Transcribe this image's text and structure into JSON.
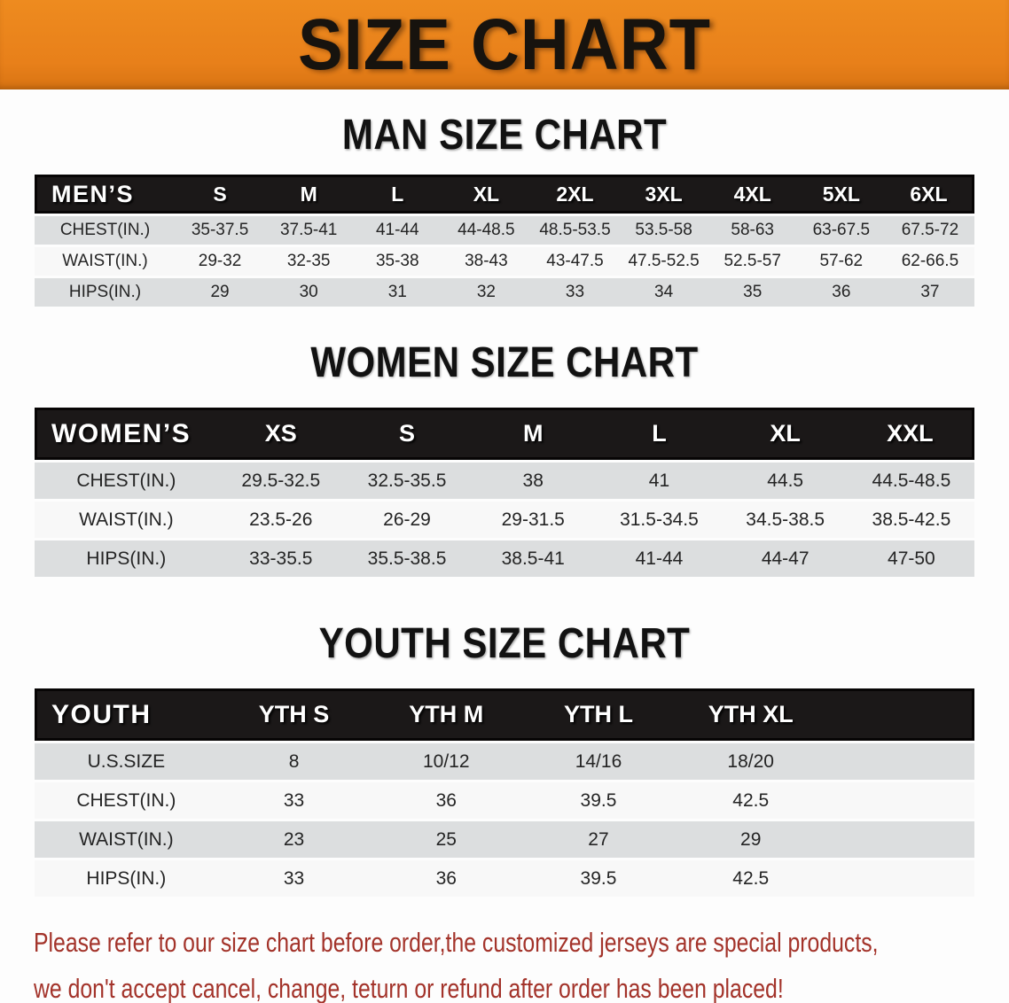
{
  "banner": {
    "title": "SIZE CHART"
  },
  "theme": {
    "banner_bg": "#E8801A",
    "banner_text": "#17130E",
    "header_bar_bg": "#1B1818",
    "header_bar_text": "#FFFFFF",
    "row_shade": "#DCDEDF",
    "row_plain": "#F8F8F8",
    "disclaimer_color": "#A3332A"
  },
  "sections": {
    "mens": {
      "title": "MAN SIZE CHART",
      "table": {
        "label": "MEN’S",
        "header": [
          "S",
          "M",
          "L",
          "XL",
          "2XL",
          "3XL",
          "4XL",
          "5XL",
          "6XL"
        ],
        "rows": [
          {
            "label": "CHEST(IN.)",
            "values": [
              "35-37.5",
              "37.5-41",
              "41-44",
              "44-48.5",
              "48.5-53.5",
              "53.5-58",
              "58-63",
              "63-67.5",
              "67.5-72"
            ]
          },
          {
            "label": "WAIST(IN.)",
            "values": [
              "29-32",
              "32-35",
              "35-38",
              "38-43",
              "43-47.5",
              "47.5-52.5",
              "52.5-57",
              "57-62",
              "62-66.5"
            ]
          },
          {
            "label": "HIPS(IN.)",
            "values": [
              "29",
              "30",
              "31",
              "32",
              "33",
              "34",
              "35",
              "36",
              "37"
            ]
          }
        ]
      }
    },
    "womens": {
      "title": "WOMEN SIZE CHART",
      "table": {
        "label": "WOMEN’S",
        "header": [
          "XS",
          "S",
          "M",
          "L",
          "XL",
          "XXL"
        ],
        "rows": [
          {
            "label": "CHEST(IN.)",
            "values": [
              "29.5-32.5",
              "32.5-35.5",
              "38",
              "41",
              "44.5",
              "44.5-48.5"
            ]
          },
          {
            "label": "WAIST(IN.)",
            "values": [
              "23.5-26",
              "26-29",
              "29-31.5",
              "31.5-34.5",
              "34.5-38.5",
              "38.5-42.5"
            ]
          },
          {
            "label": "HIPS(IN.)",
            "values": [
              "33-35.5",
              "35.5-38.5",
              "38.5-41",
              "41-44",
              "44-47",
              "47-50"
            ]
          }
        ]
      }
    },
    "youth": {
      "title": "YOUTH SIZE CHART",
      "table": {
        "label": "YOUTH",
        "header": [
          "YTH S",
          "YTH M",
          "YTH L",
          "YTH XL"
        ],
        "rows": [
          {
            "label": "U.S.SIZE",
            "values": [
              "8",
              "10/12",
              "14/16",
              "18/20"
            ]
          },
          {
            "label": "CHEST(IN.)",
            "values": [
              "33",
              "36",
              "39.5",
              "42.5"
            ]
          },
          {
            "label": "WAIST(IN.)",
            "values": [
              "23",
              "25",
              "27",
              "29"
            ]
          },
          {
            "label": "HIPS(IN.)",
            "values": [
              "33",
              "36",
              "39.5",
              "42.5"
            ]
          }
        ]
      }
    }
  },
  "disclaimer": {
    "line1": "Please refer to our size chart before order,the customized jerseys are special products,",
    "line2": "we don't accept cancel, change, teturn or refund after order has been placed!"
  }
}
